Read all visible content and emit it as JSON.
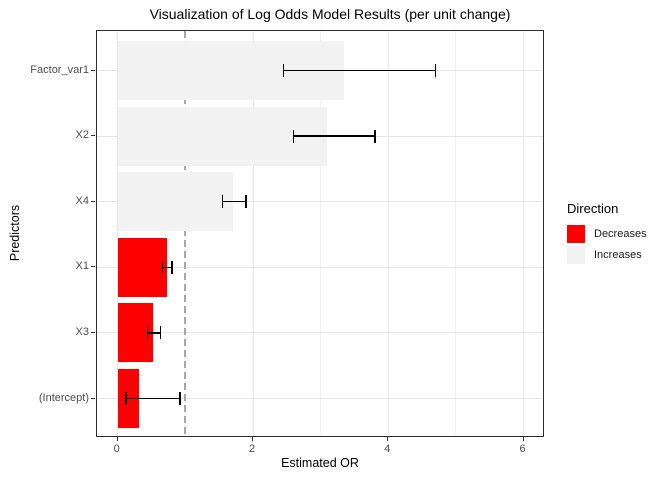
{
  "chart_data": {
    "type": "bar",
    "orientation": "horizontal",
    "title": "Visualization of Log Odds Model Results (per unit change)",
    "xlabel": "Estimated OR",
    "ylabel": "Predictors",
    "xlim": [
      -0.31,
      6.32
    ],
    "x_major_ticks": [
      0,
      2,
      4,
      6
    ],
    "x_minor_ticks": [
      1,
      3,
      5
    ],
    "grid": true,
    "reference_line": {
      "x": 1,
      "style": "dashed",
      "color": "#a6a6a6"
    },
    "legend": {
      "title": "Direction",
      "position": "right",
      "entries": [
        {
          "label": "Decreases",
          "color": "#ff0000"
        },
        {
          "label": "Increases",
          "color": "#f2f2f2"
        }
      ]
    },
    "categories": [
      "Factor_var1",
      "X2",
      "X4",
      "X1",
      "X3",
      "(Intercept)"
    ],
    "bars": [
      {
        "predictor": "Factor_var1",
        "estimated_or": 3.35,
        "ci_low": 2.45,
        "ci_high": 4.7,
        "direction": "Increases"
      },
      {
        "predictor": "X2",
        "estimated_or": 3.1,
        "ci_low": 2.6,
        "ci_high": 3.8,
        "direction": "Increases"
      },
      {
        "predictor": "X4",
        "estimated_or": 1.7,
        "ci_low": 1.55,
        "ci_high": 1.9,
        "direction": "Increases"
      },
      {
        "predictor": "X1",
        "estimated_or": 0.73,
        "ci_low": 0.66,
        "ci_high": 0.8,
        "direction": "Decreases"
      },
      {
        "predictor": "X3",
        "estimated_or": 0.52,
        "ci_low": 0.44,
        "ci_high": 0.63,
        "direction": "Decreases"
      },
      {
        "predictor": "(Intercept)",
        "estimated_or": 0.31,
        "ci_low": 0.12,
        "ci_high": 0.92,
        "direction": "Decreases"
      }
    ]
  }
}
